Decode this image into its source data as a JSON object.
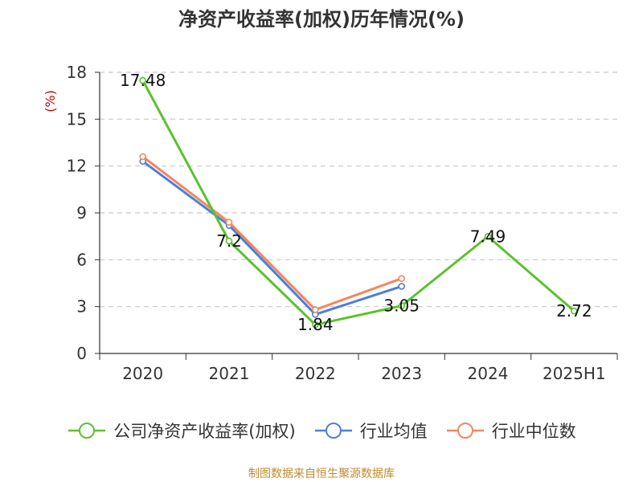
{
  "chart_data": {
    "type": "line",
    "title": "净资产收益率(加权)历年情况(%)",
    "ylabel": "(%)",
    "categories": [
      "2020",
      "2021",
      "2022",
      "2023",
      "2024",
      "2025H1"
    ],
    "ylim": [
      0,
      18
    ],
    "yticks": [
      0,
      3,
      6,
      9,
      12,
      15,
      18
    ],
    "grid": "horizontal dashed",
    "legend_position": "bottom",
    "series": [
      {
        "name": "公司净资产收益率(加权)",
        "color": "#5ac22c",
        "labeled": true,
        "values": [
          17.48,
          7.2,
          1.84,
          3.05,
          7.49,
          2.72
        ],
        "labels": [
          "17.48",
          "7.2",
          "1.84",
          "3.05",
          "7.49",
          "2.72"
        ]
      },
      {
        "name": "行业均值",
        "color": "#4f7ed9",
        "labeled": false,
        "values": [
          12.3,
          8.2,
          2.5,
          4.3,
          null,
          null
        ]
      },
      {
        "name": "行业中位数",
        "color": "#f2875f",
        "labeled": false,
        "values": [
          12.6,
          8.4,
          2.8,
          4.8,
          null,
          null
        ]
      }
    ]
  },
  "source_text": "制图数据来自恒生聚源数据库"
}
